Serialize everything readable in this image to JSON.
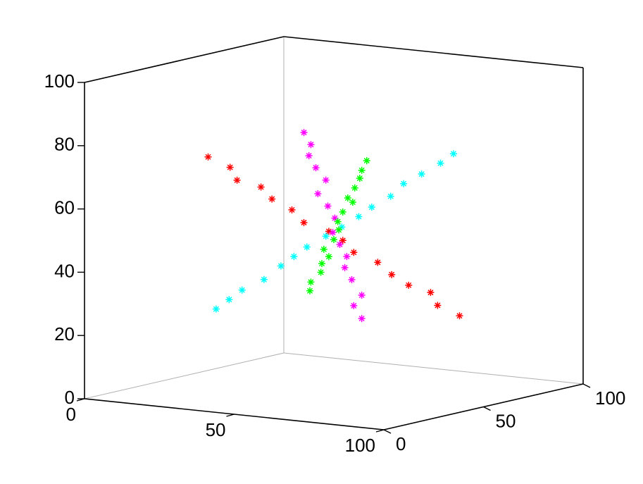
{
  "chart_data": {
    "type": "scatter3d",
    "xlim": [
      0,
      100
    ],
    "ylim": [
      0,
      100
    ],
    "zlim": [
      0,
      100
    ],
    "xticks": [
      0,
      50,
      100
    ],
    "yticks": [
      0,
      50,
      100
    ],
    "zticks": [
      0,
      20,
      40,
      60,
      80,
      100
    ],
    "marker": "asterisk",
    "series": [
      {
        "color": "#ff0000",
        "x": [
          8,
          14,
          19,
          25,
          30,
          36,
          42,
          47,
          53,
          58,
          64,
          70,
          75,
          81,
          86,
          92
        ],
        "y": [
          50,
          52,
          48,
          51,
          49,
          50,
          47,
          52,
          50,
          48,
          51,
          49,
          50,
          52,
          48,
          50
        ],
        "z": [
          70,
          67,
          64,
          62,
          59,
          56,
          53,
          50,
          48,
          45,
          42,
          39,
          36,
          34,
          31,
          28
        ]
      },
      {
        "color": "#00ffff",
        "x": [
          26,
          29,
          32,
          36,
          39,
          42,
          45,
          48,
          52,
          55,
          58,
          61,
          64,
          68,
          71,
          74
        ],
        "y": [
          27,
          29,
          31,
          36,
          40,
          42,
          44,
          49,
          51,
          55,
          57,
          62,
          64,
          67,
          72,
          74
        ],
        "z": [
          27,
          30,
          33,
          36,
          40,
          43,
          46,
          49,
          52,
          55,
          58,
          61,
          65,
          68,
          71,
          74
        ]
      },
      {
        "color": "#ff00ff",
        "x": [
          50,
          51,
          49,
          50,
          52,
          48,
          50,
          51,
          49,
          50,
          51,
          49,
          50,
          52,
          48,
          50
        ],
        "y": [
          35,
          37,
          39,
          41,
          43,
          45,
          47,
          49,
          51,
          53,
          55,
          57,
          59,
          61,
          63,
          64
        ],
        "z": [
          84,
          80,
          76,
          72,
          68,
          63,
          59,
          55,
          50,
          46,
          42,
          38,
          34,
          29,
          25,
          21
        ]
      },
      {
        "color": "#00ff00",
        "x": [
          42,
          43,
          45,
          46,
          47,
          48,
          50,
          51,
          52,
          53,
          55,
          56,
          57,
          58,
          60,
          61
        ],
        "y": [
          50,
          49,
          51,
          50,
          52,
          48,
          50,
          51,
          49,
          50,
          52,
          48,
          50,
          51,
          49,
          50
        ],
        "z": [
          31,
          34,
          37,
          40,
          42,
          45,
          48,
          51,
          54,
          57,
          60,
          62,
          65,
          68,
          71,
          74
        ]
      }
    ]
  }
}
